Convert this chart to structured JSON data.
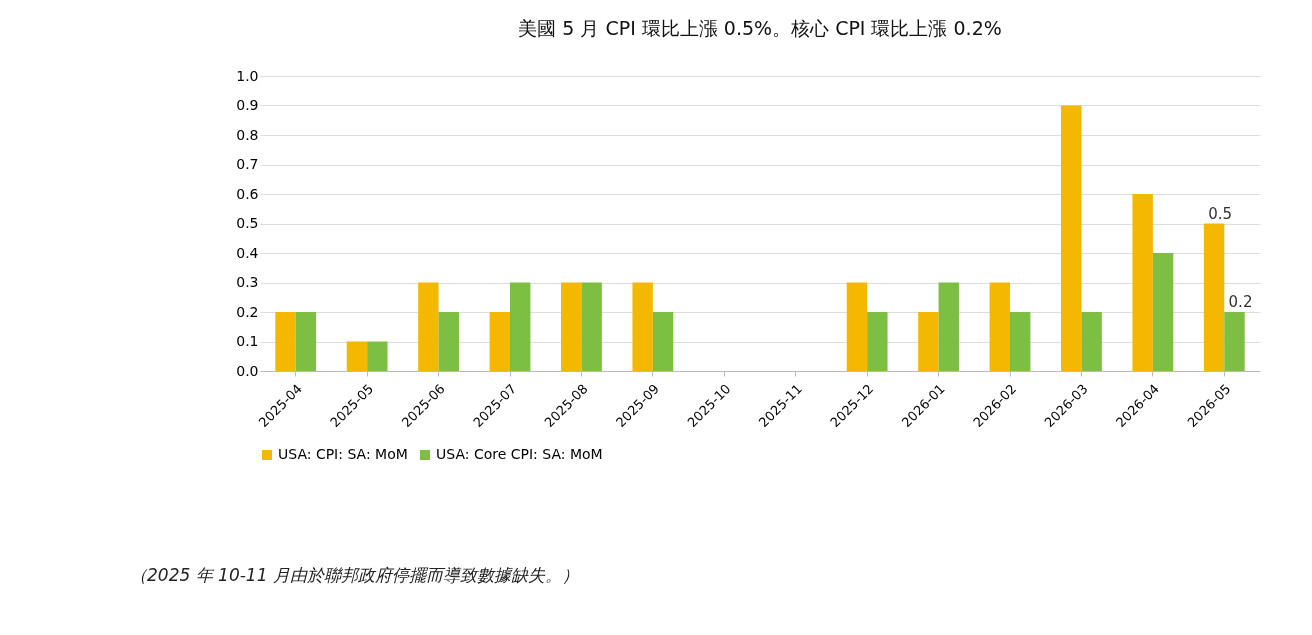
{
  "chart_data": {
    "type": "bar",
    "title": "美國 5 月 CPI 環比上漲 0.5%。核心 CPI 環比上漲 0.2%",
    "categories": [
      "2025-04",
      "2025-05",
      "2025-06",
      "2025-07",
      "2025-08",
      "2025-09",
      "2025-10",
      "2025-11",
      "2025-12",
      "2026-01",
      "2026-02",
      "2026-03",
      "2026-04",
      "2026-05"
    ],
    "series": [
      {
        "name": "USA: CPI: SA: MoM",
        "color": "#f5b800",
        "values": [
          0.2,
          0.1,
          0.3,
          0.2,
          0.3,
          0.3,
          null,
          null,
          0.3,
          0.2,
          0.3,
          0.9,
          0.6,
          0.5
        ],
        "value_labels": [
          null,
          null,
          null,
          null,
          null,
          null,
          null,
          null,
          null,
          null,
          null,
          null,
          null,
          "0.5"
        ]
      },
      {
        "name": "USA: Core CPI: SA: MoM",
        "color": "#7cbf42",
        "values": [
          0.2,
          0.1,
          0.2,
          0.3,
          0.3,
          0.2,
          null,
          null,
          0.2,
          0.3,
          0.2,
          0.2,
          0.4,
          0.2
        ],
        "value_labels": [
          null,
          null,
          null,
          null,
          null,
          null,
          null,
          null,
          null,
          null,
          null,
          null,
          null,
          "0.2"
        ]
      }
    ],
    "ylim": [
      0,
      1.0
    ],
    "yticks": [
      {
        "value": 0,
        "label": "0.0"
      },
      0.1,
      0.2,
      0.3,
      0.4,
      0.5,
      0.6,
      0.7,
      0.8,
      0.9,
      {
        "value": 1,
        "label": "1.0"
      }
    ],
    "grid": "y",
    "legend": "bottom",
    "annotations": [
      "（2025 年 10-11 月由於聯邦政府停擺而導致數據缺失。）"
    ]
  }
}
